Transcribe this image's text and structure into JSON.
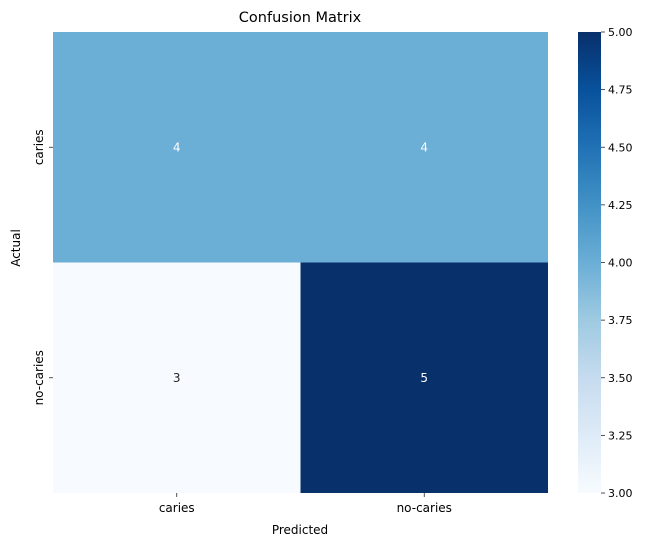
{
  "chart_data": {
    "type": "heatmap",
    "title": "Confusion Matrix",
    "xlabel": "Predicted",
    "ylabel": "Actual",
    "x_categories": [
      "caries",
      "no-caries"
    ],
    "y_categories": [
      "caries",
      "no-caries"
    ],
    "values": [
      [
        4,
        4
      ],
      [
        3,
        5
      ]
    ],
    "colorbar": {
      "range": [
        3.0,
        5.0
      ],
      "ticks": [
        "3.00",
        "3.25",
        "3.50",
        "3.75",
        "4.00",
        "4.25",
        "4.50",
        "4.75",
        "5.00"
      ]
    },
    "colormap": "Blues",
    "colors": {
      "low": "#f7fbff",
      "mid": "#6baed6",
      "high": "#08306b"
    },
    "grid": false,
    "legend": "none"
  }
}
